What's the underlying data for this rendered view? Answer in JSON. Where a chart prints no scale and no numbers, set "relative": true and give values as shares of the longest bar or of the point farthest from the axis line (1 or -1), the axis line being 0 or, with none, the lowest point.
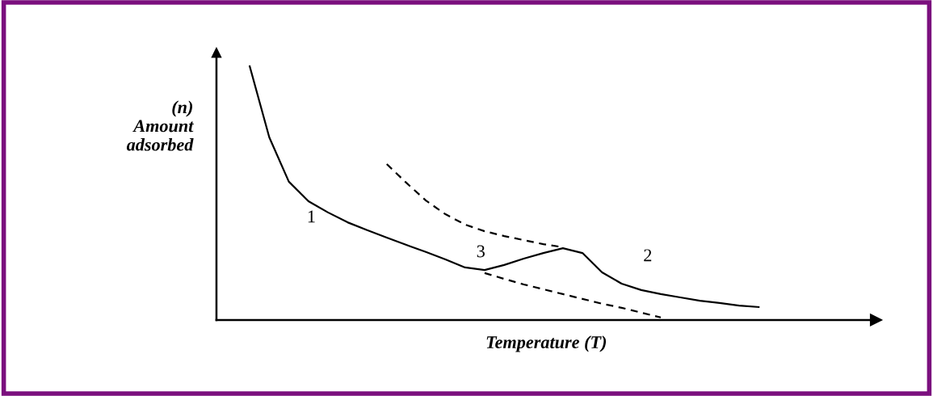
{
  "chart_data": {
    "type": "line",
    "relative": true,
    "xlabel": "Temperature (T)",
    "ylabel": "(n)\nAmount\nadsorbed",
    "categories": [
      null,
      null,
      null,
      null,
      null,
      null,
      null,
      null,
      null,
      null,
      null,
      null,
      null,
      null,
      null,
      null,
      null,
      null,
      null,
      null,
      null,
      null,
      null,
      null,
      null,
      null,
      null,
      null,
      null,
      null,
      null,
      null
    ],
    "series": [
      {
        "color": "#000000",
        "line_style": "solid",
        "values": [
          1.0,
          0.72,
          0.545,
          0.468,
          0.424,
          0.385,
          0.354,
          0.325,
          0.296,
          0.268,
          0.239,
          0.207,
          0.197,
          0.217,
          0.242,
          0.264,
          0.283,
          0.264,
          0.188,
          0.143,
          0.118,
          0.102,
          0.089,
          0.076,
          0.067,
          0.057,
          0.051,
          null,
          null,
          null,
          null,
          null
        ]
      },
      {
        "color": "#000000",
        "line_style": "dashed",
        "values": [
          null,
          null,
          null,
          null,
          null,
          null,
          null,
          0.615,
          0.541,
          0.471,
          0.417,
          0.376,
          0.35,
          0.331,
          0.315,
          0.299,
          0.287,
          null,
          null,
          null,
          null,
          null,
          null,
          null,
          null,
          null,
          null,
          null,
          null,
          null,
          null,
          null
        ]
      },
      {
        "color": "#000000",
        "line_style": "dashed",
        "values": [
          null,
          null,
          null,
          null,
          null,
          null,
          null,
          null,
          null,
          null,
          null,
          null,
          0.185,
          0.162,
          0.14,
          0.121,
          0.102,
          0.083,
          0.064,
          0.048,
          0.029,
          0.01,
          null,
          null,
          null,
          null,
          null,
          null,
          null,
          null,
          null,
          null
        ]
      }
    ],
    "annotations": [
      "1",
      "3",
      "2"
    ],
    "legend": false,
    "marker": "none",
    "tick_labels": false
  }
}
